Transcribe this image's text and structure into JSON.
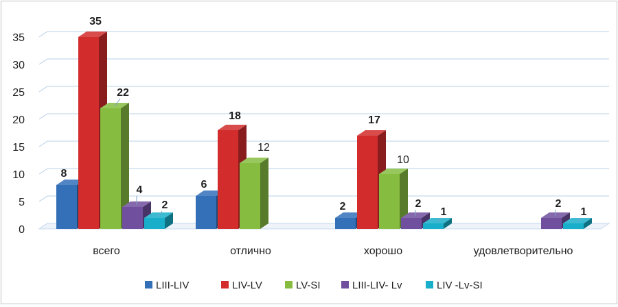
{
  "chart_data": {
    "type": "bar",
    "title": "",
    "xlabel": "",
    "ylabel": "",
    "ylim": [
      0,
      35
    ],
    "yticks": [
      "0",
      "5",
      "10",
      "15",
      "20",
      "25",
      "30",
      "35"
    ],
    "grid": true,
    "legend_position": "bottom",
    "categories": [
      "всего",
      "отлично",
      "хорошо",
      "удовлетворительно"
    ],
    "series": [
      {
        "name": "LIII-LIV",
        "color": "#3470b8",
        "values": [
          8,
          6,
          2,
          null
        ],
        "labels": [
          "8",
          "6",
          "2",
          ""
        ],
        "label_bold": [
          true,
          true,
          true,
          false
        ]
      },
      {
        "name": "LIV-LV",
        "color": "#d22c2c",
        "values": [
          35,
          18,
          17,
          null
        ],
        "labels": [
          "35",
          "18",
          "17",
          ""
        ],
        "label_bold": [
          true,
          true,
          true,
          false
        ]
      },
      {
        "name": "LV-SI",
        "color": "#86bd40",
        "values": [
          22,
          12,
          10,
          null
        ],
        "labels": [
          "22",
          "12",
          "10",
          ""
        ],
        "label_bold": [
          true,
          false,
          false,
          false
        ]
      },
      {
        "name": "LIII-LIV- Lv",
        "color": "#6f4f9e",
        "values": [
          4,
          null,
          2,
          2
        ],
        "labels": [
          "4",
          "",
          "2",
          "2"
        ],
        "label_bold": [
          true,
          false,
          true,
          true
        ]
      },
      {
        "name": "LIV -Lv-SI",
        "color": "#19aec9",
        "values": [
          2,
          null,
          1,
          1
        ],
        "labels": [
          "2",
          "",
          "1",
          "1"
        ],
        "label_bold": [
          true,
          false,
          true,
          true
        ]
      }
    ]
  }
}
